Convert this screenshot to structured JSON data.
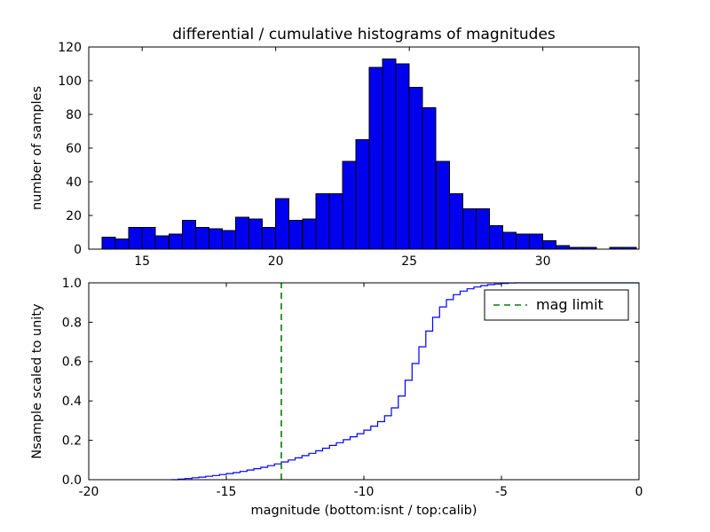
{
  "figure": {
    "background": "#ffffff",
    "title": "differential / cumulative histograms of magnitudes"
  },
  "chart_data": [
    {
      "type": "bar",
      "name": "differential-histogram",
      "title": "differential / cumulative histograms of magnitudes",
      "xlabel": "",
      "ylabel": "number of samples",
      "xlim": [
        13.0,
        33.6
      ],
      "ylim": [
        0,
        120
      ],
      "xticks": [
        15,
        20,
        25,
        30
      ],
      "xtick_labels": [
        "15",
        "20",
        "25",
        "30"
      ],
      "yticks": [
        0,
        20,
        40,
        60,
        80,
        100,
        120
      ],
      "ytick_labels": [
        "0",
        "20",
        "40",
        "60",
        "80",
        "100",
        "120"
      ],
      "grid": false,
      "bin_start": 13.5,
      "bin_width": 0.5,
      "counts": [
        7,
        6,
        13,
        13,
        8,
        9,
        17,
        13,
        12,
        11,
        19,
        18,
        13,
        30,
        17,
        18,
        33,
        33,
        52,
        65,
        108,
        113,
        110,
        96,
        84,
        52,
        33,
        24,
        24,
        14,
        10,
        9,
        9,
        5,
        2,
        1,
        1,
        0,
        1,
        1
      ],
      "bar_fill": "#0000ee",
      "bar_edge": "#000000"
    },
    {
      "type": "line",
      "name": "cumulative-histogram",
      "title": "",
      "xlabel": "magnitude (bottom:isnt / top:calib)",
      "ylabel": "Nsample scaled to unity",
      "xlim": [
        -20,
        0
      ],
      "ylim": [
        0,
        1.0
      ],
      "xticks": [
        -20,
        -15,
        -10,
        -5,
        0
      ],
      "xtick_labels": [
        "-20",
        "-15",
        "-10",
        "-5",
        "0"
      ],
      "yticks": [
        0.0,
        0.2,
        0.4,
        0.6,
        0.8,
        1.0
      ],
      "ytick_labels": [
        "0.0",
        "0.2",
        "0.4",
        "0.6",
        "0.8",
        "1.0"
      ],
      "grid": false,
      "step": true,
      "line_color": "#0000ff",
      "x": [
        -17,
        -16.75,
        -16.5,
        -16.25,
        -16,
        -15.75,
        -15.5,
        -15.25,
        -15,
        -14.75,
        -14.5,
        -14.25,
        -14,
        -13.75,
        -13.5,
        -13.25,
        -13,
        -12.75,
        -12.5,
        -12.25,
        -12,
        -11.75,
        -11.5,
        -11.25,
        -11,
        -10.75,
        -10.5,
        -10.25,
        -10,
        -9.75,
        -9.5,
        -9.25,
        -9,
        -8.75,
        -8.5,
        -8.25,
        -8,
        -7.75,
        -7.5,
        -7.25,
        -7,
        -6.75,
        -6.5,
        -6.25,
        -6,
        -5.75,
        -5.5,
        -5.25,
        -5,
        -4.75,
        -4.5
      ],
      "y": [
        0,
        0.003,
        0.006,
        0.01,
        0.013,
        0.017,
        0.021,
        0.026,
        0.031,
        0.036,
        0.042,
        0.049,
        0.056,
        0.063,
        0.071,
        0.08,
        0.09,
        0.1,
        0.111,
        0.122,
        0.134,
        0.147,
        0.16,
        0.174,
        0.188,
        0.203,
        0.218,
        0.234,
        0.252,
        0.272,
        0.295,
        0.325,
        0.365,
        0.425,
        0.505,
        0.59,
        0.675,
        0.755,
        0.825,
        0.878,
        0.915,
        0.94,
        0.958,
        0.97,
        0.979,
        0.986,
        0.991,
        0.994,
        0.997,
        0.999,
        1
      ],
      "vline": {
        "x": -13,
        "color": "#008000",
        "style": "dashed",
        "label": "mag limit"
      },
      "legend": {
        "label": "mag limit",
        "position": "upper right"
      }
    }
  ]
}
